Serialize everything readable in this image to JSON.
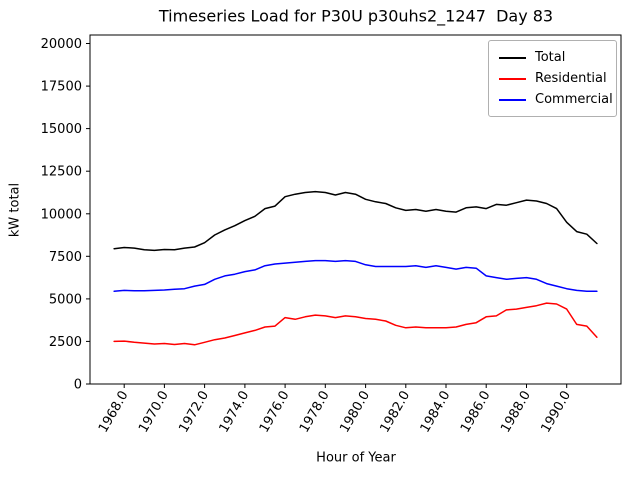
{
  "chart_data": {
    "type": "line",
    "title": "Timeseries Load for P30U p30uhs2_1247  Day 83",
    "xlabel": "Hour of Year",
    "ylabel": "kW total",
    "xlim": [
      1966.3,
      1992.7
    ],
    "ylim": [
      0,
      20500
    ],
    "grid": false,
    "legend_position": "upper right",
    "x_ticks": [
      1968,
      1970,
      1972,
      1974,
      1976,
      1978,
      1980,
      1982,
      1984,
      1986,
      1988,
      1990
    ],
    "x_tick_labels": [
      "1968.0",
      "1970.0",
      "1972.0",
      "1974.0",
      "1976.0",
      "1978.0",
      "1980.0",
      "1982.0",
      "1984.0",
      "1986.0",
      "1988.0",
      "1990.0"
    ],
    "y_ticks": [
      0,
      2500,
      5000,
      7500,
      10000,
      12500,
      15000,
      17500,
      20000
    ],
    "y_tick_labels": [
      "0",
      "2500",
      "5000",
      "7500",
      "10000",
      "12500",
      "15000",
      "17500",
      "20000"
    ],
    "x": [
      1967.5,
      1968.0,
      1968.5,
      1969.0,
      1969.5,
      1970.0,
      1970.5,
      1971.0,
      1971.5,
      1972.0,
      1972.5,
      1973.0,
      1973.5,
      1974.0,
      1974.5,
      1975.0,
      1975.5,
      1976.0,
      1976.5,
      1977.0,
      1977.5,
      1978.0,
      1978.5,
      1979.0,
      1979.5,
      1980.0,
      1980.5,
      1981.0,
      1981.5,
      1982.0,
      1982.5,
      1983.0,
      1983.5,
      1984.0,
      1984.5,
      1985.0,
      1985.5,
      1986.0,
      1986.5,
      1987.0,
      1987.5,
      1988.0,
      1988.5,
      1989.0,
      1989.5,
      1990.0,
      1990.5,
      1991.0,
      1991.5
    ],
    "series": [
      {
        "name": "Total",
        "color": "#000000",
        "values": [
          7950,
          8020,
          7980,
          7880,
          7850,
          7900,
          7880,
          7980,
          8050,
          8300,
          8750,
          9050,
          9300,
          9600,
          9850,
          10300,
          10450,
          11000,
          11150,
          11250,
          11300,
          11250,
          11100,
          11250,
          11150,
          10850,
          10700,
          10600,
          10350,
          10200,
          10250,
          10150,
          10250,
          10150,
          10100,
          10350,
          10400,
          10300,
          10550,
          10500,
          10650,
          10800,
          10750,
          10600,
          10300,
          9500,
          8950,
          8800,
          8250
        ]
      },
      {
        "name": "Residential",
        "color": "#ff0000",
        "values": [
          2500,
          2520,
          2450,
          2400,
          2350,
          2380,
          2320,
          2380,
          2300,
          2450,
          2600,
          2700,
          2850,
          3000,
          3150,
          3350,
          3400,
          3900,
          3800,
          3950,
          4050,
          4000,
          3900,
          4000,
          3950,
          3850,
          3800,
          3700,
          3450,
          3300,
          3350,
          3300,
          3300,
          3300,
          3350,
          3500,
          3600,
          3950,
          4000,
          4350,
          4400,
          4500,
          4600,
          4750,
          4700,
          4400,
          3500,
          3400,
          2750
        ]
      },
      {
        "name": "Commercial",
        "color": "#0000ff",
        "values": [
          5450,
          5500,
          5480,
          5480,
          5500,
          5520,
          5560,
          5600,
          5750,
          5850,
          6150,
          6350,
          6450,
          6600,
          6700,
          6950,
          7050,
          7100,
          7150,
          7200,
          7250,
          7250,
          7200,
          7250,
          7200,
          7000,
          6900,
          6900,
          6900,
          6900,
          6950,
          6850,
          6950,
          6850,
          6750,
          6850,
          6800,
          6350,
          6250,
          6150,
          6200,
          6250,
          6150,
          5900,
          5750,
          5600,
          5500,
          5450,
          5450
        ]
      }
    ]
  }
}
